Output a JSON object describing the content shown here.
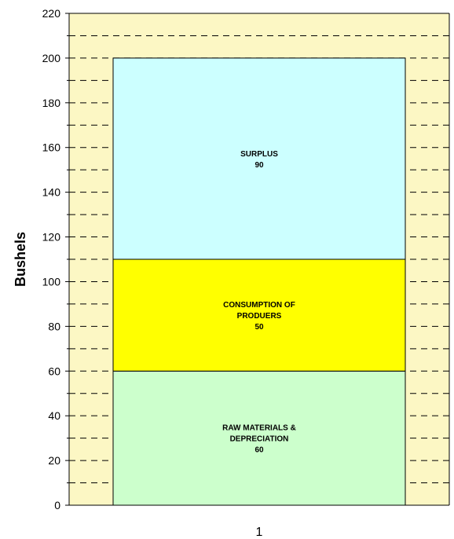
{
  "chart_data": {
    "type": "bar",
    "stacked": true,
    "categories": [
      "1"
    ],
    "ylabel": "Bushels",
    "ylim": [
      0,
      220
    ],
    "yticks": [
      0,
      20,
      40,
      60,
      80,
      100,
      120,
      140,
      160,
      180,
      200,
      220
    ],
    "grid": "dashed horizontal",
    "plot_background": "#fcf7c4",
    "series": [
      {
        "name": "RAW MATERIALS & DEPRECIATION",
        "label_lines": [
          "RAW MATERIALS &",
          "DEPRECIATION"
        ],
        "values": [
          60
        ],
        "color": "#ccffcc"
      },
      {
        "name": "CONSUMPTION OF PRODUERS",
        "label_lines": [
          "CONSUMPTION OF",
          "PRODUERS"
        ],
        "values": [
          50
        ],
        "color": "#ffff00"
      },
      {
        "name": "SURPLUS",
        "label_lines": [
          "SURPLUS"
        ],
        "values": [
          90
        ],
        "color": "#ccffff"
      }
    ]
  }
}
